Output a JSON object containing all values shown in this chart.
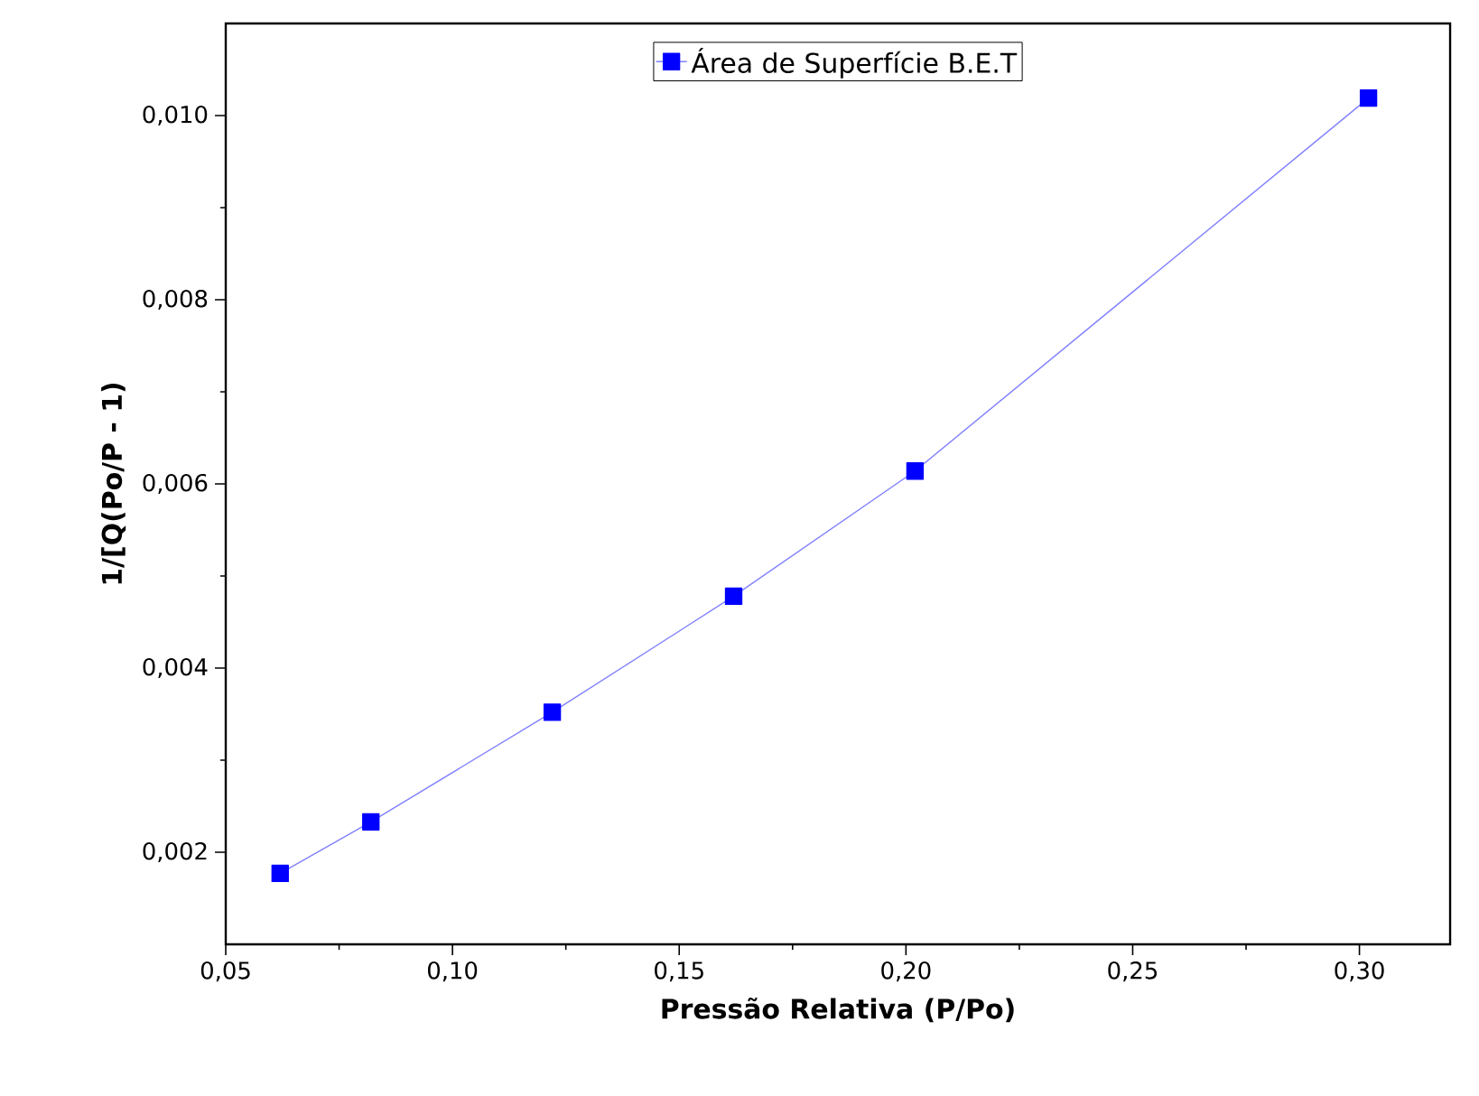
{
  "chart_data": {
    "type": "line",
    "xlabel": "Pressão Relativa (P/Po)",
    "ylabel": "1/[Q(Po/P - 1)",
    "x": [
      0.062,
      0.082,
      0.122,
      0.162,
      0.202,
      0.302
    ],
    "series": [
      {
        "name": "Área de Superfície B.E.T",
        "color": "#0000ff",
        "values": [
          0.00177,
          0.00233,
          0.00352,
          0.00478,
          0.00614,
          0.01019
        ]
      }
    ],
    "xlim": [
      0.05,
      0.32
    ],
    "ylim": [
      0.001,
      0.011
    ],
    "xticks": [
      {
        "value": 0.05,
        "label": "0,05"
      },
      {
        "value": 0.1,
        "label": "0,10"
      },
      {
        "value": 0.15,
        "label": "0,15"
      },
      {
        "value": 0.2,
        "label": "0,20"
      },
      {
        "value": 0.25,
        "label": "0,25"
      },
      {
        "value": 0.3,
        "label": "0,30"
      }
    ],
    "yticks": [
      {
        "value": 0.002,
        "label": "0,002"
      },
      {
        "value": 0.004,
        "label": "0,004"
      },
      {
        "value": 0.006,
        "label": "0,006"
      },
      {
        "value": 0.008,
        "label": "0,008"
      },
      {
        "value": 0.01,
        "label": "0,010"
      }
    ],
    "legend": "top",
    "marker": "square",
    "line_style": "solid",
    "grid": false
  }
}
